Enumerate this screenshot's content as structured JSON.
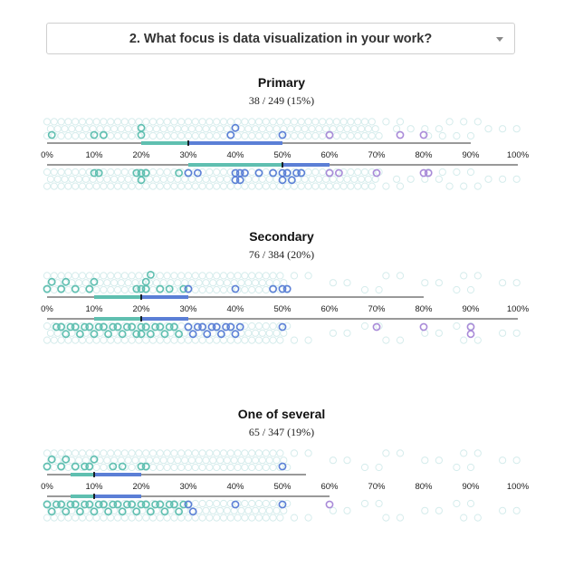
{
  "question": {
    "label": "2. What focus is data visualization in your work?"
  },
  "colors": {
    "teal": "#5fbfb0",
    "blue": "#5b7fd6",
    "purple": "#a98ad8",
    "axis": "#333333",
    "ghost": "#d5ecec"
  },
  "chart_data": [
    {
      "type": "beeswarm-range",
      "title": "Primary",
      "subtitle": "38 / 249 (15%)",
      "x_ticks": [
        "0%",
        "10%",
        "20%",
        "30%",
        "40%",
        "50%",
        "60%",
        "70%",
        "80%",
        "90%",
        "100%"
      ],
      "xlim": [
        0,
        100
      ],
      "sample": {
        "range": [
          0,
          90
        ],
        "iqr": [
          20,
          50
        ],
        "median": 30
      },
      "population": {
        "range": [
          0,
          100
        ],
        "iqr": [
          30,
          60
        ],
        "median": 50
      },
      "sample_points": [
        1,
        10,
        12,
        20,
        20,
        39,
        40,
        50,
        60,
        75,
        80
      ],
      "population_points": [
        10,
        11,
        19,
        20,
        20,
        21,
        28,
        30,
        32,
        40,
        41,
        42,
        41,
        40,
        45,
        48,
        50,
        50,
        51,
        52,
        53,
        54,
        60,
        62,
        70,
        80,
        81
      ]
    },
    {
      "type": "beeswarm-range",
      "title": "Secondary",
      "subtitle": "76 / 384 (20%)",
      "x_ticks": [
        "0%",
        "10%",
        "20%",
        "30%",
        "40%",
        "50%",
        "60%",
        "70%",
        "80%",
        "90%",
        "100%"
      ],
      "xlim": [
        0,
        100
      ],
      "sample": {
        "range": [
          0,
          80
        ],
        "iqr": [
          10,
          30
        ],
        "median": 20
      },
      "population": {
        "range": [
          0,
          100
        ],
        "iqr": [
          10,
          30
        ],
        "median": 20
      },
      "sample_points": [
        0,
        1,
        3,
        4,
        6,
        9,
        10,
        19,
        20,
        21,
        21,
        22,
        24,
        26,
        29,
        30,
        40,
        48,
        50,
        51
      ],
      "population_points": [
        2,
        3,
        4,
        5,
        6,
        7,
        8,
        9,
        10,
        11,
        12,
        13,
        14,
        15,
        16,
        17,
        18,
        19,
        20,
        20,
        21,
        22,
        23,
        24,
        25,
        26,
        27,
        28,
        30,
        31,
        32,
        33,
        34,
        35,
        36,
        37,
        38,
        39,
        40,
        41,
        50,
        70,
        80,
        90,
        90
      ]
    },
    {
      "type": "beeswarm-range",
      "title": "One of several",
      "subtitle": "65 / 347 (19%)",
      "x_ticks": [
        "0%",
        "10%",
        "20%",
        "30%",
        "40%",
        "50%",
        "60%",
        "70%",
        "80%",
        "90%",
        "100%"
      ],
      "xlim": [
        0,
        100
      ],
      "sample": {
        "range": [
          0,
          55
        ],
        "iqr": [
          5,
          20
        ],
        "median": 10
      },
      "population": {
        "range": [
          0,
          60
        ],
        "iqr": [
          5,
          20
        ],
        "median": 10
      },
      "sample_points": [
        0,
        1,
        3,
        4,
        6,
        8,
        9,
        10,
        14,
        16,
        20,
        21,
        50
      ],
      "population_points": [
        0,
        1,
        2,
        3,
        4,
        5,
        6,
        7,
        8,
        9,
        10,
        11,
        12,
        13,
        14,
        15,
        16,
        17,
        18,
        19,
        20,
        21,
        22,
        23,
        24,
        25,
        26,
        27,
        28,
        29,
        30,
        31,
        40,
        50,
        60
      ]
    }
  ]
}
